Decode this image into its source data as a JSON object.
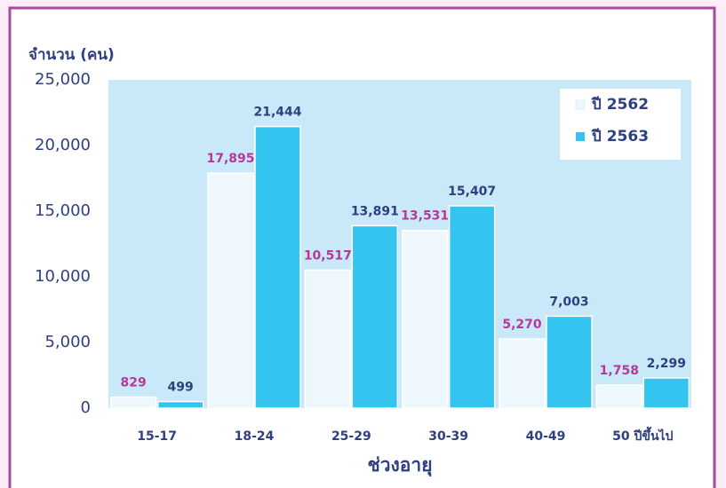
{
  "chart_data": {
    "type": "bar",
    "y_label": "จำนวน (คน)",
    "x_label": "ช่วงอายุ",
    "categories": [
      "15-17",
      "18-24",
      "25-29",
      "30-39",
      "40-49",
      "50 ปีขึ้นไป"
    ],
    "series": [
      {
        "name": "ปี 2562",
        "color": "#eef7fc",
        "label_color": "#b5399b",
        "values": [
          829,
          17895,
          10517,
          13531,
          5270,
          1758
        ],
        "value_labels": [
          "829",
          "17,895",
          "10,517",
          "13,531",
          "5,270",
          "1,758"
        ]
      },
      {
        "name": "ปี 2563",
        "color": "#33c4ef",
        "label_color": "#2f3f80",
        "values": [
          499,
          21444,
          13891,
          15407,
          7003,
          2299
        ],
        "value_labels": [
          "499",
          "21,444",
          "13,891",
          "15,407",
          "7,003",
          "2,299"
        ]
      }
    ],
    "ylim": [
      0,
      25000
    ],
    "yticks": [
      0,
      {
        "value": 5000,
        "label": "5,000"
      },
      {
        "value": 10000,
        "label": "10,000"
      },
      {
        "value": 15000,
        "label": "15,000"
      },
      {
        "value": 20000,
        "label": "20,000"
      },
      {
        "value": 25000,
        "label": "25,000"
      }
    ],
    "grid": false,
    "legend": "upper right"
  }
}
